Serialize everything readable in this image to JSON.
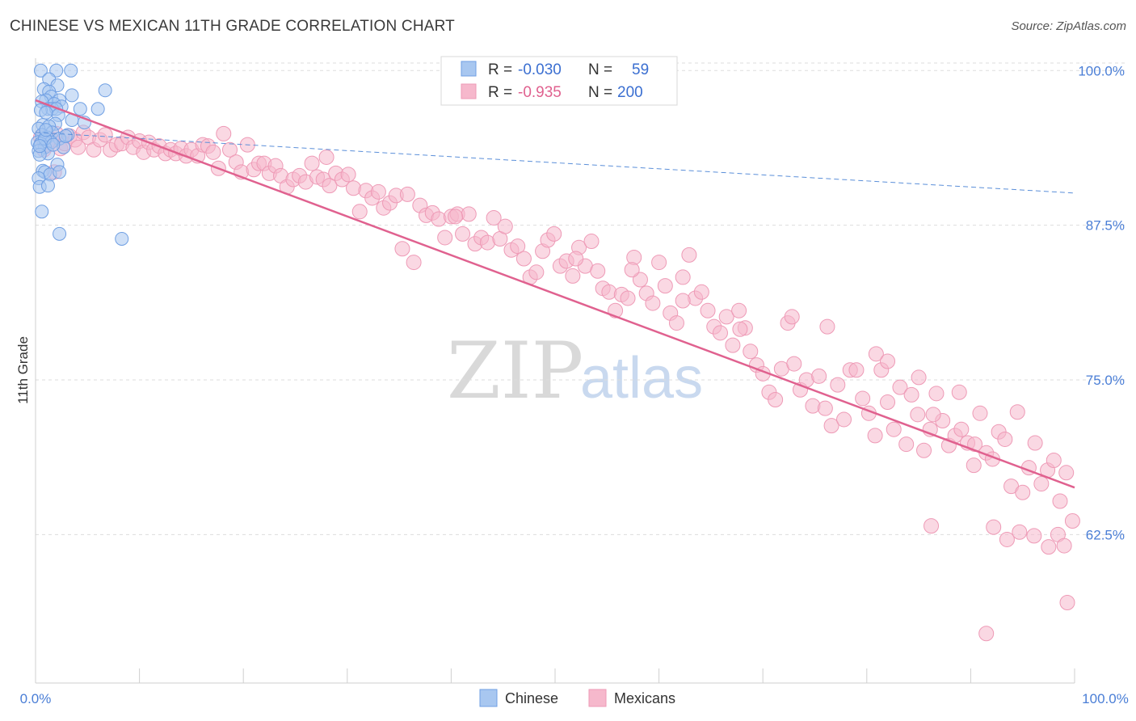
{
  "title": "CHINESE VS MEXICAN 11TH GRADE CORRELATION CHART",
  "source": "Source: ZipAtlas.com",
  "watermark": {
    "zip": "ZIP",
    "atlas": "atlas"
  },
  "colors": {
    "blue_fill": "#a8c7f0",
    "blue_stroke": "#6f9fe3",
    "blue_line": "#5b8fd9",
    "pink_fill": "#f6b8cc",
    "pink_stroke": "#ee9ab6",
    "pink_line": "#e0618f",
    "axis_text": "#4a7ed6",
    "grid": "#dddddd"
  },
  "legend": {
    "rows": [
      {
        "r_label": "R =",
        "r_value": "-0.030",
        "n_label": "N =",
        "n_value": "59"
      },
      {
        "r_label": "R =",
        "r_value": "-0.935",
        "n_label": "N =",
        "n_value": "200"
      }
    ]
  },
  "bottom_legend": [
    {
      "label": "Chinese"
    },
    {
      "label": "Mexicans"
    }
  ],
  "chart_data": {
    "type": "scatter",
    "title": "CHINESE VS MEXICAN 11TH GRADE CORRELATION CHART",
    "xlabel": "",
    "ylabel": "11th Grade",
    "xlim": [
      0,
      100
    ],
    "ylim": [
      50.5,
      101
    ],
    "x_tick_labels": [
      "0.0%",
      "100.0%"
    ],
    "y_ticks": [
      {
        "value": 100,
        "label": "100.0%"
      },
      {
        "value": 87.5,
        "label": "87.5%"
      },
      {
        "value": 75,
        "label": "75.0%"
      },
      {
        "value": 62.5,
        "label": "62.5%"
      }
    ],
    "series": [
      {
        "name": "Chinese",
        "r": -0.03,
        "n": 59,
        "trend": {
          "x0": 0,
          "y0": 95.0,
          "x1": 100,
          "y1": 90.1,
          "style": "dashed"
        },
        "points": [
          [
            0.5,
            100.0
          ],
          [
            2.0,
            100.0
          ],
          [
            3.4,
            100.0
          ],
          [
            1.3,
            99.3
          ],
          [
            2.1,
            98.8
          ],
          [
            0.8,
            98.5
          ],
          [
            1.3,
            98.3
          ],
          [
            6.7,
            98.4
          ],
          [
            3.5,
            98.0
          ],
          [
            1.5,
            97.9
          ],
          [
            2.3,
            97.6
          ],
          [
            1.0,
            97.6
          ],
          [
            0.6,
            97.5
          ],
          [
            1.8,
            97.3
          ],
          [
            2.5,
            97.1
          ],
          [
            4.3,
            96.9
          ],
          [
            6.0,
            96.9
          ],
          [
            1.2,
            96.9
          ],
          [
            1.6,
            96.9
          ],
          [
            2.0,
            96.9
          ],
          [
            0.5,
            96.8
          ],
          [
            1.0,
            96.6
          ],
          [
            2.2,
            96.4
          ],
          [
            3.5,
            96.0
          ],
          [
            4.7,
            95.8
          ],
          [
            1.9,
            95.7
          ],
          [
            0.7,
            95.6
          ],
          [
            1.3,
            95.5
          ],
          [
            0.3,
            95.3
          ],
          [
            1.6,
            95.0
          ],
          [
            3.1,
            94.8
          ],
          [
            0.6,
            94.8
          ],
          [
            1.1,
            94.6
          ],
          [
            2.3,
            94.5
          ],
          [
            0.8,
            94.3
          ],
          [
            1.5,
            94.2
          ],
          [
            0.2,
            94.2
          ],
          [
            0.5,
            94.1
          ],
          [
            2.7,
            93.8
          ],
          [
            0.9,
            93.8
          ],
          [
            0.3,
            93.5
          ],
          [
            1.2,
            93.3
          ],
          [
            0.4,
            93.2
          ],
          [
            0.7,
            91.9
          ],
          [
            0.9,
            91.8
          ],
          [
            1.4,
            91.6
          ],
          [
            2.1,
            92.4
          ],
          [
            2.3,
            91.8
          ],
          [
            0.3,
            91.3
          ],
          [
            0.4,
            90.6
          ],
          [
            1.2,
            90.7
          ],
          [
            0.6,
            88.6
          ],
          [
            2.3,
            86.8
          ],
          [
            8.3,
            86.4
          ],
          [
            0.9,
            94.5
          ],
          [
            1.7,
            94.0
          ],
          [
            2.9,
            94.7
          ],
          [
            0.4,
            93.9
          ],
          [
            1.0,
            95.2
          ]
        ]
      },
      {
        "name": "Mexicans",
        "r": -0.935,
        "n": 200,
        "trend": {
          "x0": 0,
          "y0": 97.6,
          "x1": 100,
          "y1": 66.3,
          "style": "solid"
        },
        "points": [
          [
            0.5,
            94.6
          ],
          [
            0.8,
            93.6
          ],
          [
            1.2,
            94.0
          ],
          [
            1.6,
            94.4
          ],
          [
            2.0,
            94.9
          ],
          [
            2.4,
            93.7
          ],
          [
            2.8,
            94.1
          ],
          [
            3.3,
            94.7
          ],
          [
            3.8,
            94.4
          ],
          [
            4.1,
            93.8
          ],
          [
            4.6,
            95.0
          ],
          [
            5.1,
            94.6
          ],
          [
            5.6,
            93.6
          ],
          [
            6.2,
            94.4
          ],
          [
            6.7,
            94.8
          ],
          [
            7.2,
            93.6
          ],
          [
            7.8,
            94.0
          ],
          [
            8.3,
            94.1
          ],
          [
            8.9,
            94.6
          ],
          [
            9.4,
            93.8
          ],
          [
            10.0,
            94.3
          ],
          [
            10.4,
            93.4
          ],
          [
            10.9,
            94.2
          ],
          [
            11.4,
            93.6
          ],
          [
            11.9,
            93.9
          ],
          [
            12.5,
            93.3
          ],
          [
            13.0,
            93.6
          ],
          [
            13.5,
            93.3
          ],
          [
            14.0,
            93.7
          ],
          [
            14.5,
            93.1
          ],
          [
            15.0,
            93.6
          ],
          [
            15.6,
            93.1
          ],
          [
            16.1,
            94.0
          ],
          [
            16.6,
            93.9
          ],
          [
            17.1,
            93.4
          ],
          [
            17.6,
            92.1
          ],
          [
            18.1,
            94.9
          ],
          [
            18.7,
            93.6
          ],
          [
            19.3,
            92.6
          ],
          [
            19.8,
            91.8
          ],
          [
            20.4,
            94.0
          ],
          [
            21.0,
            92.0
          ],
          [
            21.5,
            92.5
          ],
          [
            22.0,
            92.5
          ],
          [
            22.5,
            91.7
          ],
          [
            23.1,
            92.3
          ],
          [
            23.6,
            91.5
          ],
          [
            24.2,
            90.6
          ],
          [
            24.8,
            91.2
          ],
          [
            25.4,
            91.5
          ],
          [
            26.0,
            91.0
          ],
          [
            26.6,
            92.5
          ],
          [
            27.1,
            91.4
          ],
          [
            27.7,
            91.2
          ],
          [
            28.3,
            90.7
          ],
          [
            28.9,
            91.7
          ],
          [
            29.5,
            91.2
          ],
          [
            30.1,
            91.6
          ],
          [
            30.6,
            90.5
          ],
          [
            31.2,
            88.6
          ],
          [
            31.8,
            90.3
          ],
          [
            32.4,
            89.7
          ],
          [
            33.0,
            90.2
          ],
          [
            33.5,
            88.9
          ],
          [
            34.1,
            89.3
          ],
          [
            34.7,
            89.9
          ],
          [
            35.3,
            85.6
          ],
          [
            35.8,
            90.0
          ],
          [
            36.4,
            84.5
          ],
          [
            37.0,
            89.1
          ],
          [
            37.6,
            88.3
          ],
          [
            38.2,
            88.5
          ],
          [
            38.8,
            88.0
          ],
          [
            39.4,
            86.5
          ],
          [
            40.0,
            88.2
          ],
          [
            40.6,
            88.4
          ],
          [
            41.1,
            86.8
          ],
          [
            41.7,
            88.4
          ],
          [
            42.3,
            86.0
          ],
          [
            42.9,
            86.5
          ],
          [
            43.5,
            86.1
          ],
          [
            44.1,
            88.1
          ],
          [
            44.7,
            86.4
          ],
          [
            45.2,
            87.4
          ],
          [
            45.8,
            85.5
          ],
          [
            46.4,
            85.8
          ],
          [
            47.0,
            84.8
          ],
          [
            47.6,
            83.3
          ],
          [
            48.2,
            83.7
          ],
          [
            48.8,
            85.4
          ],
          [
            49.3,
            86.3
          ],
          [
            49.9,
            86.8
          ],
          [
            50.5,
            84.2
          ],
          [
            51.1,
            84.6
          ],
          [
            51.7,
            83.4
          ],
          [
            52.3,
            85.7
          ],
          [
            52.9,
            84.2
          ],
          [
            53.5,
            86.2
          ],
          [
            54.1,
            83.8
          ],
          [
            54.6,
            82.4
          ],
          [
            55.2,
            82.1
          ],
          [
            55.8,
            80.6
          ],
          [
            56.4,
            81.9
          ],
          [
            57.0,
            81.6
          ],
          [
            57.6,
            84.9
          ],
          [
            58.2,
            83.1
          ],
          [
            58.8,
            82.0
          ],
          [
            59.4,
            81.2
          ],
          [
            60.0,
            84.5
          ],
          [
            60.6,
            82.6
          ],
          [
            61.1,
            80.4
          ],
          [
            61.7,
            79.6
          ],
          [
            62.3,
            83.3
          ],
          [
            62.9,
            85.1
          ],
          [
            63.5,
            81.6
          ],
          [
            64.1,
            82.1
          ],
          [
            64.7,
            80.6
          ],
          [
            65.3,
            79.3
          ],
          [
            65.9,
            78.8
          ],
          [
            66.5,
            80.1
          ],
          [
            67.1,
            77.8
          ],
          [
            67.7,
            80.6
          ],
          [
            68.3,
            79.2
          ],
          [
            68.8,
            77.3
          ],
          [
            69.4,
            76.2
          ],
          [
            70.0,
            75.5
          ],
          [
            70.6,
            74.0
          ],
          [
            71.2,
            73.4
          ],
          [
            71.8,
            75.9
          ],
          [
            72.4,
            79.6
          ],
          [
            73.0,
            76.3
          ],
          [
            73.6,
            74.2
          ],
          [
            74.2,
            75.0
          ],
          [
            74.8,
            72.9
          ],
          [
            75.4,
            75.3
          ],
          [
            76.0,
            72.7
          ],
          [
            76.6,
            71.3
          ],
          [
            77.2,
            74.6
          ],
          [
            77.8,
            71.8
          ],
          [
            78.4,
            75.8
          ],
          [
            79.0,
            75.8
          ],
          [
            79.6,
            73.5
          ],
          [
            80.2,
            72.3
          ],
          [
            80.8,
            70.5
          ],
          [
            81.4,
            75.8
          ],
          [
            82.0,
            73.2
          ],
          [
            82.6,
            71.0
          ],
          [
            83.2,
            74.4
          ],
          [
            83.8,
            69.8
          ],
          [
            84.3,
            73.8
          ],
          [
            84.9,
            72.2
          ],
          [
            85.5,
            69.3
          ],
          [
            86.1,
            71.0
          ],
          [
            86.7,
            73.9
          ],
          [
            87.3,
            71.7
          ],
          [
            87.9,
            69.7
          ],
          [
            88.5,
            70.5
          ],
          [
            89.1,
            71.0
          ],
          [
            89.7,
            69.9
          ],
          [
            90.3,
            68.1
          ],
          [
            90.9,
            72.3
          ],
          [
            91.5,
            69.1
          ],
          [
            92.1,
            68.6
          ],
          [
            92.7,
            70.8
          ],
          [
            93.3,
            70.2
          ],
          [
            93.9,
            66.4
          ],
          [
            94.5,
            72.4
          ],
          [
            95.0,
            65.9
          ],
          [
            95.6,
            67.9
          ],
          [
            96.2,
            69.9
          ],
          [
            96.8,
            66.6
          ],
          [
            97.4,
            67.7
          ],
          [
            98.0,
            68.5
          ],
          [
            98.6,
            65.2
          ],
          [
            99.2,
            67.5
          ],
          [
            99.8,
            63.6
          ],
          [
            28.0,
            93.0
          ],
          [
            40.4,
            88.2
          ],
          [
            52.0,
            84.8
          ],
          [
            57.4,
            83.9
          ],
          [
            62.3,
            81.4
          ],
          [
            67.8,
            79.1
          ],
          [
            72.8,
            80.1
          ],
          [
            76.2,
            79.3
          ],
          [
            80.9,
            77.1
          ],
          [
            82.0,
            76.5
          ],
          [
            85.0,
            75.2
          ],
          [
            86.4,
            72.2
          ],
          [
            88.9,
            74.0
          ],
          [
            90.4,
            69.8
          ],
          [
            92.2,
            63.1
          ],
          [
            93.5,
            62.1
          ],
          [
            94.7,
            62.7
          ],
          [
            96.1,
            62.4
          ],
          [
            97.5,
            61.5
          ],
          [
            98.4,
            62.5
          ],
          [
            99.0,
            61.6
          ],
          [
            99.3,
            57.0
          ],
          [
            91.5,
            54.5
          ],
          [
            86.2,
            63.2
          ],
          [
            1.8,
            91.8
          ]
        ]
      }
    ]
  }
}
